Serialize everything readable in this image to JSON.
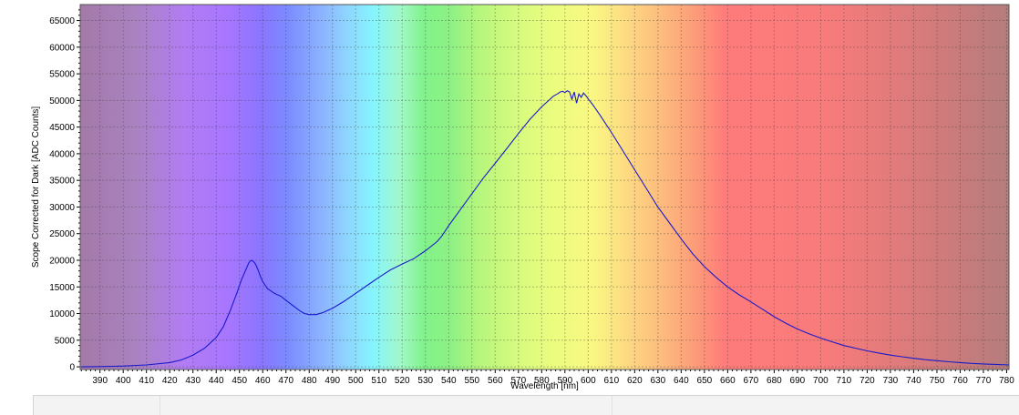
{
  "chart_data": {
    "type": "line",
    "title": "",
    "xlabel": "Wavelength [nm]",
    "ylabel": "Scope Corrected for Dark [ADC Counts]",
    "xlim": [
      381.5,
      781
    ],
    "ylim": [
      -500,
      68000
    ],
    "x_ticks": [
      390,
      400,
      410,
      420,
      430,
      440,
      450,
      460,
      470,
      480,
      490,
      500,
      510,
      520,
      530,
      540,
      550,
      560,
      570,
      580,
      590,
      600,
      610,
      620,
      630,
      640,
      650,
      660,
      670,
      680,
      690,
      700,
      710,
      720,
      730,
      740,
      750,
      760,
      770,
      780
    ],
    "y_ticks": [
      0,
      5000,
      10000,
      15000,
      20000,
      25000,
      30000,
      35000,
      40000,
      45000,
      50000,
      55000,
      60000,
      65000
    ],
    "grid": true,
    "background": "visible-spectrum color gradient",
    "series": [
      {
        "color": "#1a1acc",
        "x": [
          382,
          390,
          400,
          410,
          420,
          425,
          430,
          435,
          440,
          443,
          446,
          449,
          451,
          453,
          454,
          455,
          456,
          457,
          458,
          459,
          460,
          462,
          465,
          468,
          470,
          473,
          476,
          478,
          480,
          483,
          486,
          490,
          495,
          500,
          505,
          510,
          515,
          520,
          525,
          530,
          535,
          537,
          540,
          545,
          550,
          555,
          560,
          565,
          570,
          575,
          580,
          583,
          585,
          587,
          588,
          589,
          590,
          591,
          592,
          593,
          594,
          595,
          596,
          597,
          598,
          599,
          600,
          602,
          605,
          610,
          615,
          620,
          625,
          630,
          635,
          640,
          645,
          650,
          655,
          660,
          665,
          670,
          675,
          680,
          685,
          690,
          695,
          700,
          705,
          710,
          715,
          720,
          725,
          730,
          735,
          740,
          745,
          750,
          755,
          760,
          765,
          770,
          775,
          781
        ],
        "y": [
          0,
          50,
          150,
          350,
          800,
          1300,
          2200,
          3500,
          5500,
          7500,
          10500,
          14000,
          16500,
          18500,
          19500,
          20000,
          19800,
          19200,
          18200,
          17000,
          16000,
          14700,
          13800,
          13200,
          12500,
          11500,
          10500,
          10000,
          9800,
          9800,
          10200,
          11000,
          12300,
          13800,
          15300,
          16800,
          18200,
          19300,
          20300,
          21800,
          23500,
          24500,
          26500,
          29500,
          32500,
          35500,
          38200,
          41000,
          43800,
          46500,
          48800,
          50000,
          50800,
          51300,
          51600,
          51700,
          51500,
          51800,
          51600,
          50200,
          51600,
          49500,
          51200,
          50600,
          51400,
          50900,
          50300,
          49200,
          47300,
          44000,
          40500,
          37000,
          33500,
          30000,
          27000,
          24000,
          21200,
          18800,
          16800,
          15000,
          13500,
          12200,
          10800,
          9400,
          8200,
          7100,
          6200,
          5400,
          4700,
          4000,
          3500,
          3000,
          2600,
          2200,
          1900,
          1600,
          1350,
          1150,
          950,
          800,
          650,
          550,
          450,
          350
        ]
      }
    ]
  }
}
